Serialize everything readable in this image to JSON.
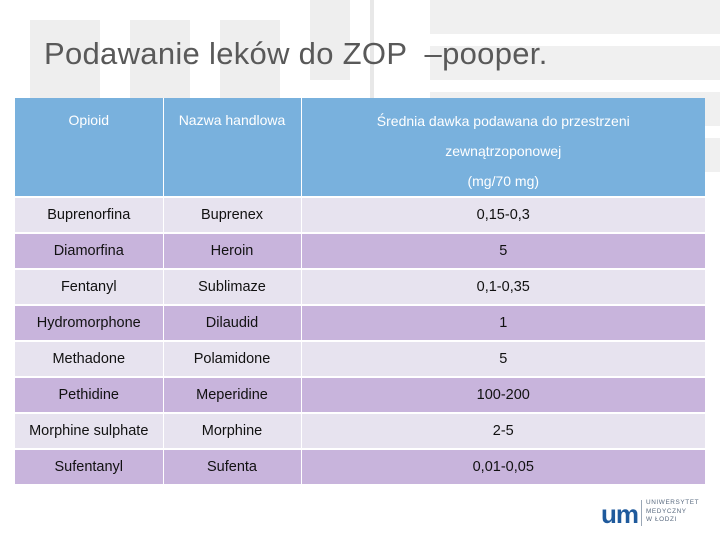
{
  "slide": {
    "title": "Podawanie leków do ZOP  –pooper."
  },
  "table": {
    "headers": {
      "opioid": "Opioid",
      "trade_name": "Nazwa handlowa",
      "dose_line1": "Średnia dawka podawana do przestrzeni",
      "dose_line2": "zewnątrzoponowej",
      "dose_line3": "(mg/70 mg)"
    },
    "rows": [
      {
        "opioid": "Buprenorfina",
        "trade_name": "Buprenex",
        "dose": "0,15-0,3"
      },
      {
        "opioid": "Diamorfina",
        "trade_name": "Heroin",
        "dose": "5"
      },
      {
        "opioid": "Fentanyl",
        "trade_name": "Sublimaze",
        "dose": "0,1-0,35"
      },
      {
        "opioid": "Hydromorphone",
        "trade_name": "Dilaudid",
        "dose": "1"
      },
      {
        "opioid": "Methadone",
        "trade_name": "Polamidone",
        "dose": "5"
      },
      {
        "opioid": "Pethidine",
        "trade_name": "Meperidine",
        "dose": "100-200"
      },
      {
        "opioid": "Morphine sulphate",
        "trade_name": "Morphine",
        "dose": "2-5"
      },
      {
        "opioid": "Sufentanyl",
        "trade_name": "Sufenta",
        "dose": "0,01-0,05"
      }
    ]
  },
  "logo": {
    "mark": "um",
    "line1": "UNIWERSYTET",
    "line2": "MEDYCZNY",
    "line3": "W ŁODZI"
  },
  "colors": {
    "header_bg": "#79b1dd",
    "row_light": "#e7e3ef",
    "row_dark": "#c8b4dc",
    "title": "#595959",
    "logo_blue": "#1f5a9c"
  }
}
